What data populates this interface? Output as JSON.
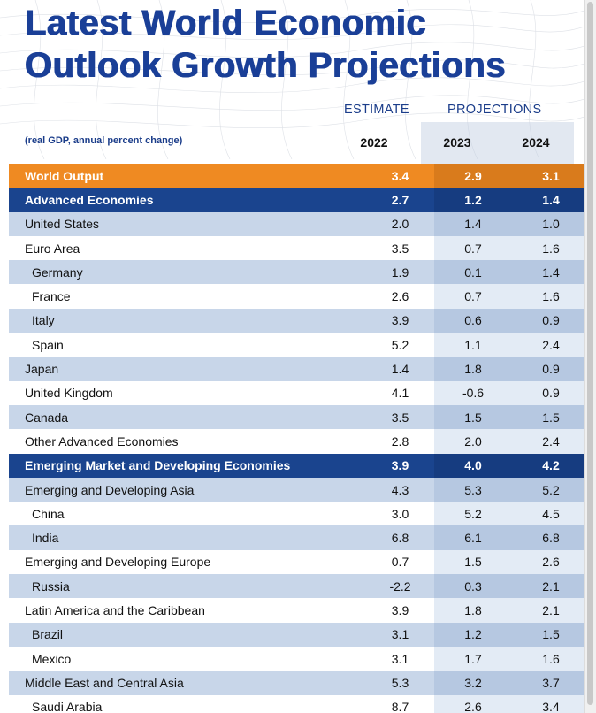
{
  "title": "Latest World Economic\nOutlook Growth Projections",
  "header": {
    "estimate_label": "ESTIMATE",
    "projections_label": "PROJECTIONS",
    "note": "(real GDP, annual percent change)",
    "years": [
      "2022",
      "2023",
      "2024"
    ]
  },
  "rows": [
    {
      "name": "World Output",
      "v2022": "3.4",
      "v2023": "2.9",
      "v2024": "3.1",
      "style": "orange",
      "indent": false
    },
    {
      "name": "Advanced Economies",
      "v2022": "2.7",
      "v2023": "1.2",
      "v2024": "1.4",
      "style": "navy",
      "indent": false
    },
    {
      "name": "United States",
      "v2022": "2.0",
      "v2023": "1.4",
      "v2024": "1.0",
      "style": "dark",
      "indent": false
    },
    {
      "name": "Euro Area",
      "v2022": "3.5",
      "v2023": "0.7",
      "v2024": "1.6",
      "style": "light",
      "indent": false
    },
    {
      "name": "Germany",
      "v2022": "1.9",
      "v2023": "0.1",
      "v2024": "1.4",
      "style": "dark",
      "indent": true
    },
    {
      "name": "France",
      "v2022": "2.6",
      "v2023": "0.7",
      "v2024": "1.6",
      "style": "light",
      "indent": true
    },
    {
      "name": "Italy",
      "v2022": "3.9",
      "v2023": "0.6",
      "v2024": "0.9",
      "style": "dark",
      "indent": true
    },
    {
      "name": "Spain",
      "v2022": "5.2",
      "v2023": "1.1",
      "v2024": "2.4",
      "style": "light",
      "indent": true
    },
    {
      "name": "Japan",
      "v2022": "1.4",
      "v2023": "1.8",
      "v2024": "0.9",
      "style": "dark",
      "indent": false
    },
    {
      "name": "United Kingdom",
      "v2022": "4.1",
      "v2023": "-0.6",
      "v2024": "0.9",
      "style": "light",
      "indent": false
    },
    {
      "name": "Canada",
      "v2022": "3.5",
      "v2023": "1.5",
      "v2024": "1.5",
      "style": "dark",
      "indent": false
    },
    {
      "name": "Other Advanced Economies",
      "v2022": "2.8",
      "v2023": "2.0",
      "v2024": "2.4",
      "style": "light",
      "indent": false
    },
    {
      "name": "Emerging Market and Developing Economies",
      "v2022": "3.9",
      "v2023": "4.0",
      "v2024": "4.2",
      "style": "navy",
      "indent": false
    },
    {
      "name": "Emerging and Developing Asia",
      "v2022": "4.3",
      "v2023": "5.3",
      "v2024": "5.2",
      "style": "dark",
      "indent": false
    },
    {
      "name": "China",
      "v2022": "3.0",
      "v2023": "5.2",
      "v2024": "4.5",
      "style": "light",
      "indent": true
    },
    {
      "name": "India",
      "v2022": "6.8",
      "v2023": "6.1",
      "v2024": "6.8",
      "style": "dark",
      "indent": true
    },
    {
      "name": "Emerging and Developing Europe",
      "v2022": "0.7",
      "v2023": "1.5",
      "v2024": "2.6",
      "style": "light",
      "indent": false
    },
    {
      "name": "Russia",
      "v2022": "-2.2",
      "v2023": "0.3",
      "v2024": "2.1",
      "style": "dark",
      "indent": true
    },
    {
      "name": "Latin America and the Caribbean",
      "v2022": "3.9",
      "v2023": "1.8",
      "v2024": "2.1",
      "style": "light",
      "indent": false
    },
    {
      "name": "Brazil",
      "v2022": "3.1",
      "v2023": "1.2",
      "v2024": "1.5",
      "style": "dark",
      "indent": true
    },
    {
      "name": "Mexico",
      "v2022": "3.1",
      "v2023": "1.7",
      "v2024": "1.6",
      "style": "light",
      "indent": true
    },
    {
      "name": "Middle East and Central Asia",
      "v2022": "5.3",
      "v2023": "3.2",
      "v2024": "3.7",
      "style": "dark",
      "indent": false
    },
    {
      "name": "Saudi Arabia",
      "v2022": "8.7",
      "v2023": "2.6",
      "v2024": "3.4",
      "style": "light",
      "indent": true
    }
  ]
}
